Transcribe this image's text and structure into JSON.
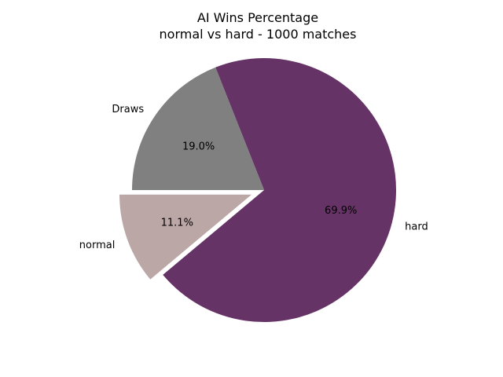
{
  "chart_data": {
    "type": "pie",
    "title": "AI Wins Percentage",
    "subtitle": "normal vs hard - 1000 matches",
    "labels": [
      "normal",
      "hard",
      "Draws"
    ],
    "values": [
      11.1,
      69.9,
      19.0
    ],
    "percent_labels": [
      "11.1%",
      "69.9%",
      "19.0%"
    ],
    "colors": [
      "#bca7a7",
      "#663366",
      "#808080"
    ],
    "exploded": [
      "normal"
    ],
    "start_angle_deg": 180,
    "direction": "counterclockwise"
  }
}
